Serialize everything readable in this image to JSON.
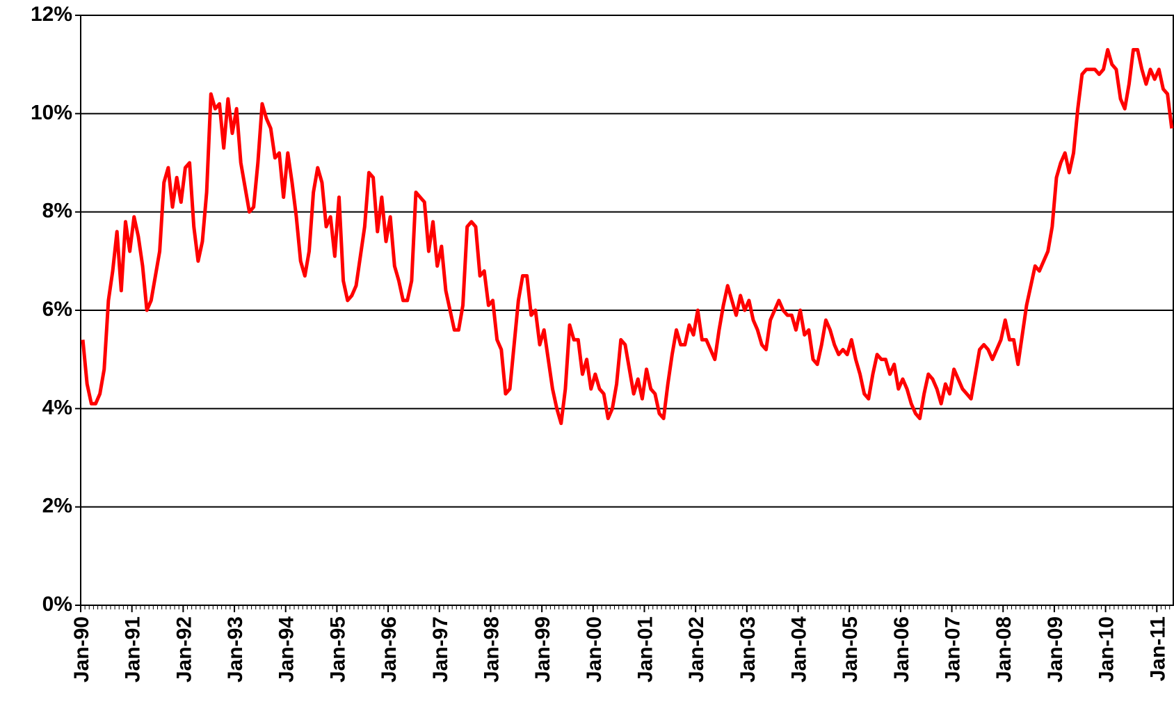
{
  "chart_data": {
    "type": "line",
    "color": "#ff0000",
    "grid": true,
    "ylim": [
      0,
      12
    ],
    "yticks": [
      {
        "value": 0,
        "label": "0%"
      },
      {
        "value": 2,
        "label": "2%"
      },
      {
        "value": 4,
        "label": "4%"
      },
      {
        "value": 6,
        "label": "6%"
      },
      {
        "value": 8,
        "label": "8%"
      },
      {
        "value": 10,
        "label": "10%"
      },
      {
        "value": 12,
        "label": "12%"
      }
    ],
    "categories": [
      "Jan-90",
      null,
      null,
      null,
      null,
      null,
      null,
      null,
      null,
      null,
      null,
      null,
      "Jan-91",
      null,
      null,
      null,
      null,
      null,
      null,
      null,
      null,
      null,
      null,
      null,
      "Jan-92",
      null,
      null,
      null,
      null,
      null,
      null,
      null,
      null,
      null,
      null,
      null,
      "Jan-93",
      null,
      null,
      null,
      null,
      null,
      null,
      null,
      null,
      null,
      null,
      null,
      "Jan-94",
      null,
      null,
      null,
      null,
      null,
      null,
      null,
      null,
      null,
      null,
      null,
      "Jan-95",
      null,
      null,
      null,
      null,
      null,
      null,
      null,
      null,
      null,
      null,
      null,
      "Jan-96",
      null,
      null,
      null,
      null,
      null,
      null,
      null,
      null,
      null,
      null,
      null,
      "Jan-97",
      null,
      null,
      null,
      null,
      null,
      null,
      null,
      null,
      null,
      null,
      null,
      "Jan-98",
      null,
      null,
      null,
      null,
      null,
      null,
      null,
      null,
      null,
      null,
      null,
      "Jan-99",
      null,
      null,
      null,
      null,
      null,
      null,
      null,
      null,
      null,
      null,
      null,
      "Jan-00",
      null,
      null,
      null,
      null,
      null,
      null,
      null,
      null,
      null,
      null,
      null,
      "Jan-01",
      null,
      null,
      null,
      null,
      null,
      null,
      null,
      null,
      null,
      null,
      null,
      "Jan-02",
      null,
      null,
      null,
      null,
      null,
      null,
      null,
      null,
      null,
      null,
      null,
      "Jan-03",
      null,
      null,
      null,
      null,
      null,
      null,
      null,
      null,
      null,
      null,
      null,
      "Jan-04",
      null,
      null,
      null,
      null,
      null,
      null,
      null,
      null,
      null,
      null,
      null,
      "Jan-05",
      null,
      null,
      null,
      null,
      null,
      null,
      null,
      null,
      null,
      null,
      null,
      "Jan-06",
      null,
      null,
      null,
      null,
      null,
      null,
      null,
      null,
      null,
      null,
      null,
      "Jan-07",
      null,
      null,
      null,
      null,
      null,
      null,
      null,
      null,
      null,
      null,
      null,
      "Jan-08",
      null,
      null,
      null,
      null,
      null,
      null,
      null,
      null,
      null,
      null,
      null,
      "Jan-09",
      null,
      null,
      null,
      null,
      null,
      null,
      null,
      null,
      null,
      null,
      null,
      "Jan-10",
      null,
      null,
      null,
      null,
      null,
      null,
      null,
      null,
      null,
      null,
      null,
      "Jan-11",
      null,
      null,
      null
    ],
    "values": [
      5.4,
      4.5,
      4.1,
      4.1,
      4.3,
      4.8,
      6.2,
      6.8,
      7.6,
      6.4,
      7.8,
      7.2,
      7.9,
      7.5,
      6.9,
      6.0,
      6.2,
      6.7,
      7.2,
      8.6,
      8.9,
      8.1,
      8.7,
      8.2,
      8.9,
      9.0,
      7.7,
      7.0,
      7.4,
      8.4,
      10.4,
      10.1,
      10.2,
      9.3,
      10.3,
      9.6,
      10.1,
      9.0,
      8.5,
      8.0,
      8.1,
      9.0,
      10.2,
      9.9,
      9.7,
      9.1,
      9.2,
      8.3,
      9.2,
      8.6,
      7.9,
      7.0,
      6.7,
      7.2,
      8.4,
      8.9,
      8.6,
      7.7,
      7.9,
      7.1,
      8.3,
      6.6,
      6.2,
      6.3,
      6.5,
      7.1,
      7.7,
      8.8,
      8.7,
      7.6,
      8.3,
      7.4,
      7.9,
      6.9,
      6.6,
      6.2,
      6.2,
      6.6,
      8.4,
      8.3,
      8.2,
      7.2,
      7.8,
      6.9,
      7.3,
      6.4,
      6.0,
      5.6,
      5.6,
      6.1,
      7.7,
      7.8,
      7.7,
      6.7,
      6.8,
      6.1,
      6.2,
      5.4,
      5.2,
      4.3,
      4.4,
      5.3,
      6.2,
      6.7,
      6.7,
      5.9,
      6.0,
      5.3,
      5.6,
      5.0,
      4.4,
      4.0,
      3.7,
      4.4,
      5.7,
      5.4,
      5.4,
      4.7,
      5.0,
      4.4,
      4.7,
      4.4,
      4.3,
      3.8,
      4.0,
      4.5,
      5.4,
      5.3,
      4.8,
      4.3,
      4.6,
      4.2,
      4.8,
      4.4,
      4.3,
      3.9,
      3.8,
      4.5,
      5.1,
      5.6,
      5.3,
      5.3,
      5.7,
      5.5,
      6.0,
      5.4,
      5.4,
      5.2,
      5.0,
      5.6,
      6.1,
      6.5,
      6.2,
      5.9,
      6.3,
      6.0,
      6.2,
      5.8,
      5.6,
      5.3,
      5.2,
      5.8,
      6.0,
      6.2,
      6.0,
      5.9,
      5.9,
      5.6,
      6.0,
      5.5,
      5.6,
      5.0,
      4.9,
      5.3,
      5.8,
      5.6,
      5.3,
      5.1,
      5.2,
      5.1,
      5.4,
      5.0,
      4.7,
      4.3,
      4.2,
      4.7,
      5.1,
      5.0,
      5.0,
      4.7,
      4.9,
      4.4,
      4.6,
      4.4,
      4.1,
      3.9,
      3.8,
      4.3,
      4.7,
      4.6,
      4.4,
      4.1,
      4.5,
      4.3,
      4.8,
      4.6,
      4.4,
      4.3,
      4.2,
      4.7,
      5.2,
      5.3,
      5.2,
      5.0,
      5.2,
      5.4,
      5.8,
      5.4,
      5.4,
      4.9,
      5.5,
      6.1,
      6.5,
      6.9,
      6.8,
      7.0,
      7.2,
      7.7,
      8.7,
      9.0,
      9.2,
      8.8,
      9.2,
      10.1,
      10.8,
      10.9,
      10.9,
      10.9,
      10.8,
      10.9,
      11.3,
      11.0,
      10.9,
      10.3,
      10.1,
      10.6,
      11.3,
      11.3,
      10.9,
      10.6,
      10.9,
      10.7,
      10.9,
      10.5,
      10.4,
      9.7
    ]
  }
}
